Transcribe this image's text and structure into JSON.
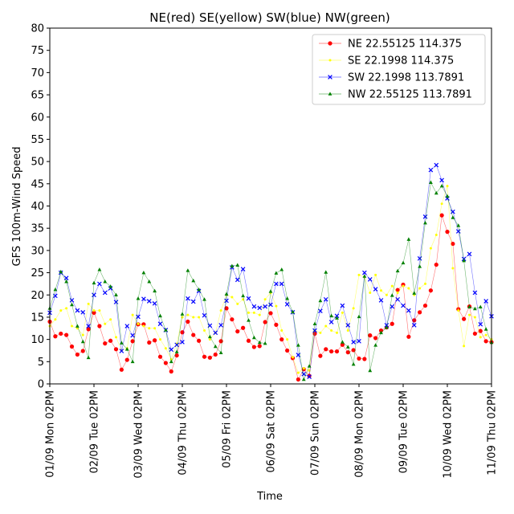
{
  "chart_data": {
    "type": "line",
    "title": "NE(red) SE(yellow) SW(blue) NW(green)",
    "xlabel": "Time",
    "ylabel": "GFS 100m-Wind Speed",
    "ylim": [
      0,
      80
    ],
    "yticks": [
      0,
      5,
      10,
      15,
      20,
      25,
      30,
      35,
      40,
      45,
      50,
      55,
      60,
      65,
      70,
      75,
      80
    ],
    "xlim": [
      0,
      240
    ],
    "xtick_hours": [
      0,
      24,
      48,
      72,
      96,
      120,
      144,
      168,
      192,
      216,
      240
    ],
    "xtick_labels": [
      "01/09 Mon 02PM",
      "02/09 Tue 02PM",
      "03/09 Wed 02PM",
      "04/09 Thu 02PM",
      "05/09 Fri 02PM",
      "06/09 Sat 02PM",
      "07/09 Sun 02PM",
      "08/09 Mon 02PM",
      "09/09 Tue 02PM",
      "10/09 Wed 02PM",
      "11/09 Thu 02PM"
    ],
    "x_step_hours": 3,
    "legend_position": "top-right",
    "grid": false,
    "series": [
      {
        "name": "NE 22.55125 114.375",
        "color": "#ff0000",
        "marker": "circle",
        "values": [
          14,
          10.7,
          11.3,
          11,
          8.4,
          6.6,
          7.4,
          12.3,
          16,
          13,
          9.1,
          9.7,
          7.8,
          3.2,
          5.4,
          9.6,
          13.4,
          13.4,
          9.3,
          9.8,
          6.1,
          4.7,
          2.8,
          6.4,
          11.6,
          14,
          11,
          9.7,
          6.1,
          5.9,
          6.6,
          9.6,
          17,
          14.5,
          11.8,
          12.6,
          9.7,
          8.3,
          8.5,
          13.9,
          15.9,
          13.3,
          10,
          7.5,
          5.8,
          1,
          3.3,
          1.8,
          11.3,
          6.3,
          7.8,
          7.3,
          7.3,
          8.8,
          7.1,
          7.6,
          5.7,
          5.6,
          10.9,
          10.3,
          12,
          12.7,
          13.5,
          21.1,
          22.3,
          10.6,
          14.3,
          16.1,
          17.6,
          21,
          26.8,
          37.9,
          34.2,
          31.5,
          16.8,
          14.6,
          17.4,
          11.3,
          11.9,
          9.6,
          9.4
        ]
      },
      {
        "name": "SE 22.1998 114.375",
        "color": "#ffff00",
        "marker": "point",
        "values": [
          13,
          14.5,
          16.5,
          17,
          13,
          12.5,
          11,
          18,
          16.5,
          16.5,
          13.5,
          14.5,
          10.5,
          7.5,
          8,
          15.5,
          13.5,
          13,
          12.5,
          12.5,
          10,
          8,
          5.5,
          9,
          15,
          15.5,
          15,
          15,
          12,
          10,
          11.5,
          16.5,
          20,
          19.5,
          18,
          19,
          16,
          16,
          15.5,
          19,
          20.5,
          17.5,
          12,
          10,
          6,
          2.5,
          3.5,
          3,
          12,
          11.5,
          13,
          12,
          11.5,
          16,
          12,
          17,
          24.5,
          24,
          20.5,
          24.5,
          21,
          20,
          22,
          20.5,
          22,
          21.5,
          20,
          21.5,
          22.5,
          30.5,
          33.5,
          40.5,
          44.5,
          26,
          16.5,
          8.5,
          15.5,
          15,
          10.5,
          11,
          10
        ]
      },
      {
        "name": "SW 22.1998 113.7891",
        "color": "#0000ff",
        "marker": "x",
        "values": [
          16,
          19.8,
          25,
          23.8,
          18.8,
          16.5,
          16.1,
          13,
          20,
          22.5,
          20.5,
          21.5,
          18.4,
          7.4,
          13,
          10.9,
          15.1,
          19.1,
          18.6,
          18.1,
          13.5,
          12.1,
          7.7,
          8.8,
          9.4,
          19.2,
          18.5,
          20.9,
          15.4,
          13.1,
          11.5,
          13.2,
          18.7,
          26.2,
          23.4,
          25.8,
          19.2,
          17.4,
          17.1,
          17.4,
          17.8,
          22.5,
          22.5,
          17.9,
          16.1,
          6.5,
          2.2,
          1.6,
          12,
          16.4,
          19,
          13.9,
          15.3,
          17.6,
          13.2,
          9.4,
          9.6,
          25,
          23.5,
          21.3,
          18.8,
          13.2,
          17.4,
          19,
          17.6,
          16.5,
          13.2,
          28.2,
          37.6,
          48.1,
          49.2,
          45.8,
          41.7,
          38.7,
          34.3,
          28.1,
          29.2,
          20.5,
          13.4,
          18.6,
          15.2
        ]
      },
      {
        "name": "NW 22.55125 113.7891",
        "color": "#008000",
        "marker": "triangle",
        "values": [
          17,
          21.2,
          25.2,
          23,
          17.8,
          13,
          9.5,
          5.9,
          22.7,
          25.7,
          23,
          21.9,
          20,
          9.2,
          7.8,
          5,
          19.2,
          25,
          23,
          20.9,
          15.3,
          12.1,
          5,
          7.2,
          15.7,
          25.5,
          23.2,
          21.2,
          19,
          10.6,
          8.4,
          7,
          20.2,
          26.5,
          26.7,
          19.8,
          14.3,
          10.4,
          9.3,
          9.1,
          20.8,
          24.9,
          25.7,
          19.2,
          16.2,
          8.7,
          1,
          4,
          13.5,
          18.7,
          25.1,
          15.3,
          14.8,
          9.4,
          8.3,
          4.4,
          15.1,
          24.2,
          3,
          8.7,
          11.5,
          12.7,
          19.9,
          25.4,
          27.2,
          32.5,
          20.4,
          26.4,
          36.2,
          45.3,
          42.9,
          44.5,
          42.2,
          37.4,
          35.6,
          27.7,
          17.3,
          16.9,
          17.3,
          12.3,
          9.3
        ]
      }
    ]
  }
}
